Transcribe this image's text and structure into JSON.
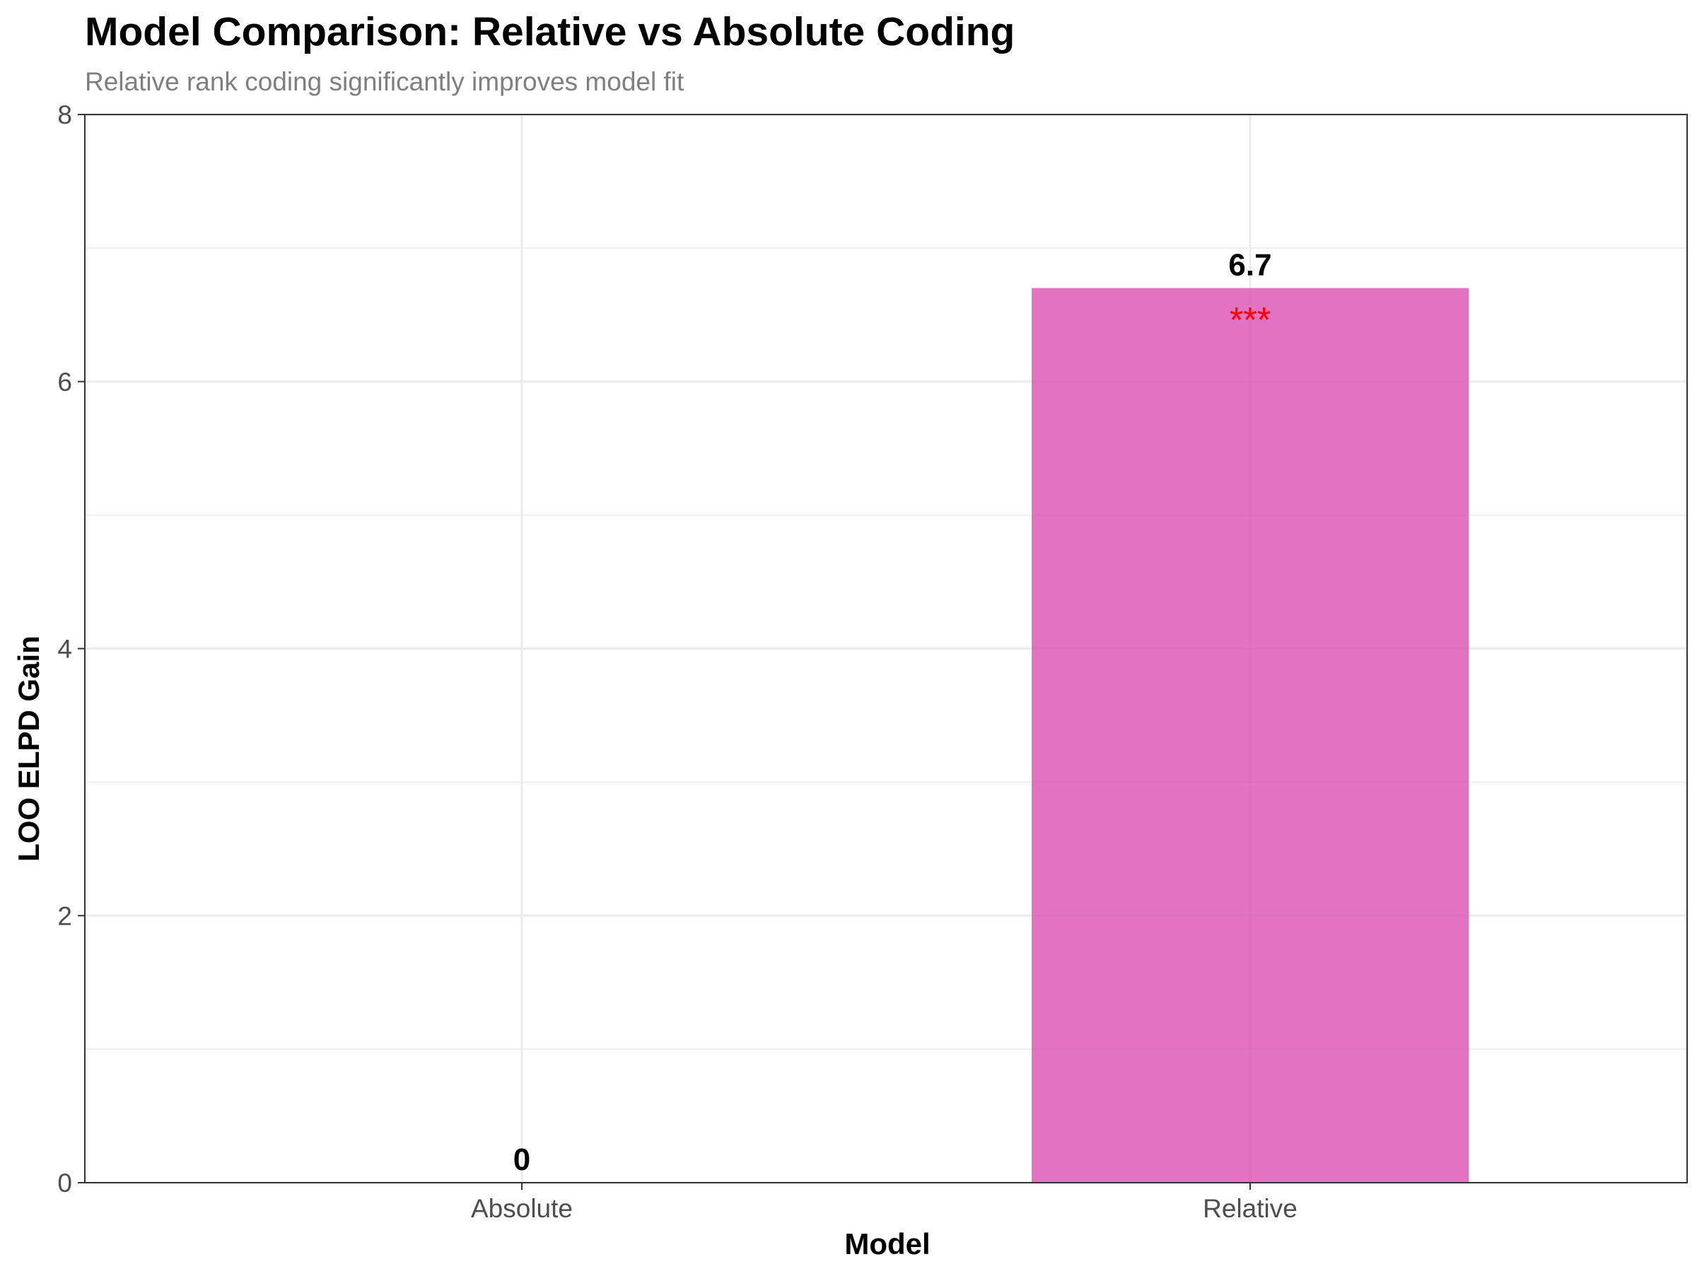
{
  "chart_data": {
    "type": "bar",
    "title": "Model Comparison: Relative vs Absolute Coding",
    "subtitle": "Relative rank coding significantly improves model fit",
    "xlabel": "Model",
    "ylabel": "LOO ELPD Gain",
    "categories": [
      "Absolute",
      "Relative"
    ],
    "values": [
      0,
      6.7
    ],
    "data_labels": [
      "0",
      "6.7"
    ],
    "significance": [
      "",
      "***"
    ],
    "ylim": [
      0,
      8
    ],
    "y_ticks": [
      0,
      2,
      4,
      6,
      8
    ],
    "y_tick_labels": [
      "0",
      "2",
      "4",
      "6",
      "8"
    ],
    "grid": true,
    "legend": "none",
    "colors": {
      "bar": "#dc5bb7",
      "significance": "#ff0000",
      "grid": "#ebebeb",
      "panel_border": "#333333"
    }
  }
}
